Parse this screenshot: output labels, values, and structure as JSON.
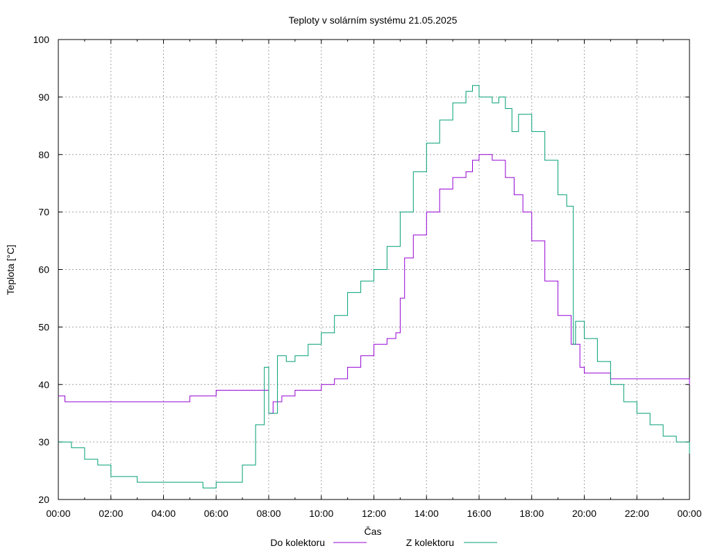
{
  "chart_data": {
    "type": "line",
    "title": "Teploty v solárním systému 21.05.2025",
    "xlabel": "Čas",
    "ylabel": "Teplota [°C]",
    "xlim": [
      0,
      24
    ],
    "ylim": [
      20,
      100
    ],
    "x_tick_labels": [
      "00:00",
      "02:00",
      "04:00",
      "06:00",
      "08:00",
      "10:00",
      "12:00",
      "14:00",
      "16:00",
      "18:00",
      "20:00",
      "22:00",
      "00:00"
    ],
    "y_tick_labels": [
      "20",
      "30",
      "40",
      "50",
      "60",
      "70",
      "80",
      "90",
      "100"
    ],
    "grid": true,
    "legend_position": "bottom",
    "series": [
      {
        "name": "Do kolektoru",
        "color": "#9400d3",
        "x": [
          "00:00",
          "00:15",
          "01:00",
          "02:00",
          "03:00",
          "03:45",
          "04:00",
          "05:00",
          "06:00",
          "07:00",
          "07:30",
          "07:55",
          "08:00",
          "08:10",
          "08:30",
          "09:00",
          "09:30",
          "10:00",
          "10:30",
          "11:00",
          "11:30",
          "12:00",
          "12:30",
          "12:50",
          "13:00",
          "13:10",
          "13:30",
          "14:00",
          "14:30",
          "15:00",
          "15:30",
          "15:45",
          "16:00",
          "16:30",
          "17:00",
          "17:20",
          "17:40",
          "18:00",
          "18:30",
          "19:00",
          "19:30",
          "19:50",
          "20:00",
          "20:30",
          "21:00",
          "21:30",
          "22:00",
          "23:00",
          "24:00"
        ],
        "y": [
          38,
          37,
          37,
          37,
          37,
          37,
          37,
          38,
          39,
          39,
          39,
          39,
          35,
          37,
          38,
          39,
          39,
          40,
          41,
          43,
          45,
          47,
          48,
          49,
          55,
          62,
          66,
          70,
          74,
          76,
          77,
          79,
          80,
          79,
          76,
          73,
          70,
          65,
          58,
          52,
          47,
          43,
          42,
          42,
          41,
          41,
          41,
          41,
          40
        ]
      },
      {
        "name": "Z kolektoru",
        "color": "#009e73",
        "x": [
          "00:00",
          "00:30",
          "01:00",
          "01:30",
          "02:00",
          "03:00",
          "04:00",
          "05:00",
          "05:30",
          "06:00",
          "06:30",
          "07:00",
          "07:30",
          "07:50",
          "08:00",
          "08:20",
          "08:40",
          "09:00",
          "09:30",
          "10:00",
          "10:30",
          "11:00",
          "11:30",
          "12:00",
          "12:30",
          "13:00",
          "13:30",
          "14:00",
          "14:30",
          "15:00",
          "15:30",
          "15:45",
          "16:00",
          "16:30",
          "16:45",
          "17:00",
          "17:15",
          "17:30",
          "18:00",
          "18:30",
          "19:00",
          "19:20",
          "19:35",
          "19:40",
          "20:00",
          "20:30",
          "21:00",
          "21:30",
          "22:00",
          "22:30",
          "23:00",
          "23:30",
          "24:00"
        ],
        "y": [
          30,
          29,
          27,
          26,
          24,
          23,
          23,
          23,
          22,
          23,
          23,
          26,
          33,
          43,
          35,
          45,
          44,
          45,
          47,
          49,
          52,
          56,
          58,
          60,
          64,
          70,
          77,
          82,
          86,
          89,
          91,
          92,
          90,
          89,
          90,
          88,
          84,
          87,
          84,
          79,
          73,
          71,
          47,
          51,
          48,
          44,
          40,
          37,
          35,
          33,
          31,
          30,
          28
        ]
      }
    ]
  }
}
